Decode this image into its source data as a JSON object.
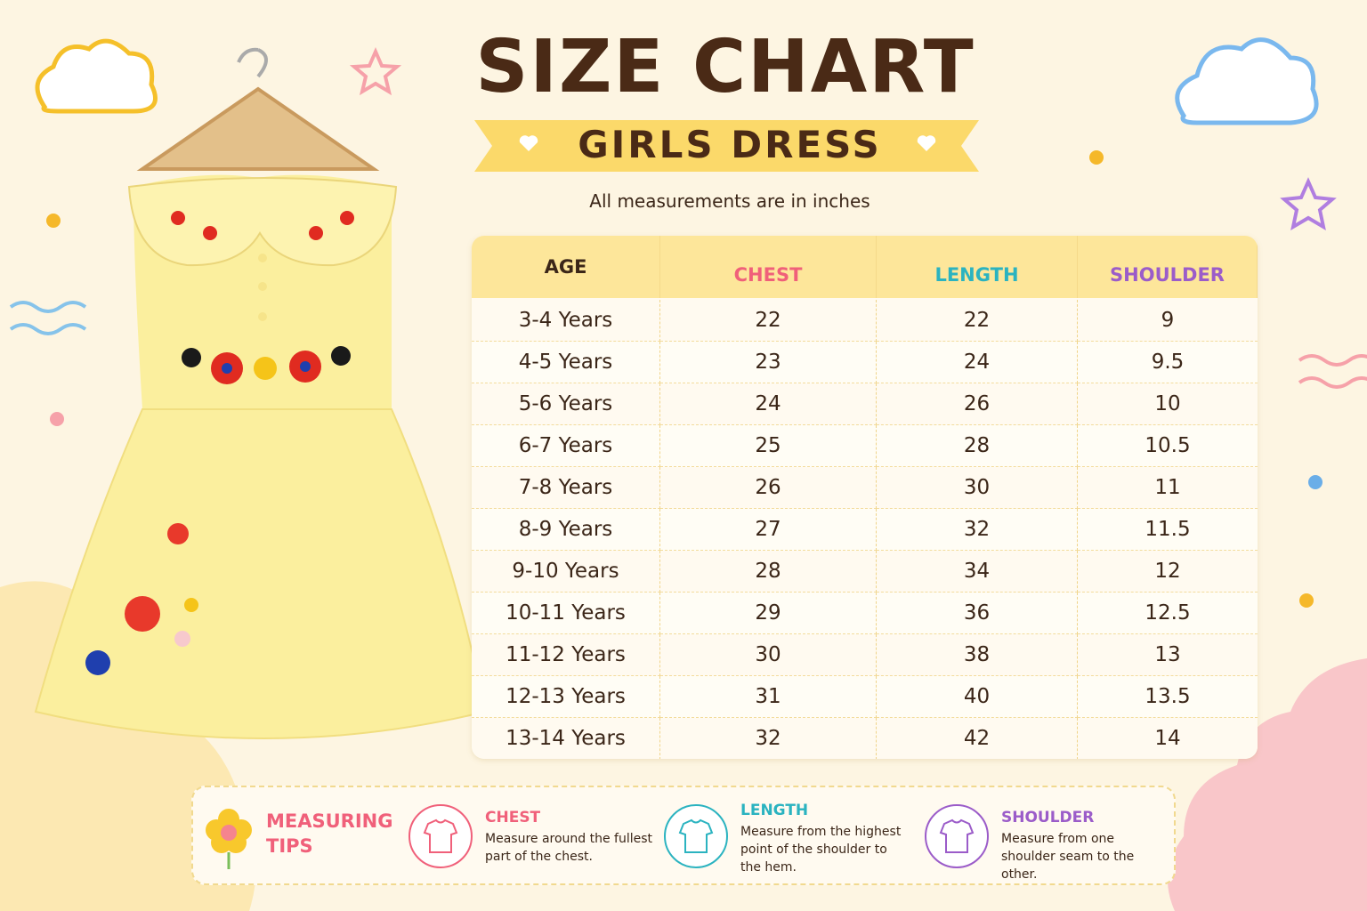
{
  "header": {
    "title": "SIZE CHART",
    "subtitle": "GIRLS DRESS",
    "note": "All measurements are in inches"
  },
  "table": {
    "columns": [
      "AGE",
      "CHEST",
      "LENGTH",
      "SHOULDER"
    ],
    "rows": [
      [
        "3-4 Years",
        "22",
        "22",
        "9"
      ],
      [
        "4-5 Years",
        "23",
        "24",
        "9.5"
      ],
      [
        "5-6 Years",
        "24",
        "26",
        "10"
      ],
      [
        "6-7 Years",
        "25",
        "28",
        "10.5"
      ],
      [
        "7-8 Years",
        "26",
        "30",
        "11"
      ],
      [
        "8-9 Years",
        "27",
        "32",
        "11.5"
      ],
      [
        "9-10 Years",
        "28",
        "34",
        "12"
      ],
      [
        "10-11 Years",
        "29",
        "36",
        "12.5"
      ],
      [
        "11-12 Years",
        "30",
        "38",
        "13"
      ],
      [
        "12-13 Years",
        "31",
        "40",
        "13.5"
      ],
      [
        "13-14 Years",
        "32",
        "42",
        "14"
      ]
    ]
  },
  "tips": {
    "title": "MEASURING TIPS",
    "items": [
      {
        "label": "CHEST",
        "text": "Measure around the fullest part of the chest."
      },
      {
        "label": "LENGTH",
        "text": "Measure from the highest point of the shoulder to the hem."
      },
      {
        "label": "SHOULDER",
        "text": "Measure from one shoulder seam to the other."
      }
    ]
  }
}
